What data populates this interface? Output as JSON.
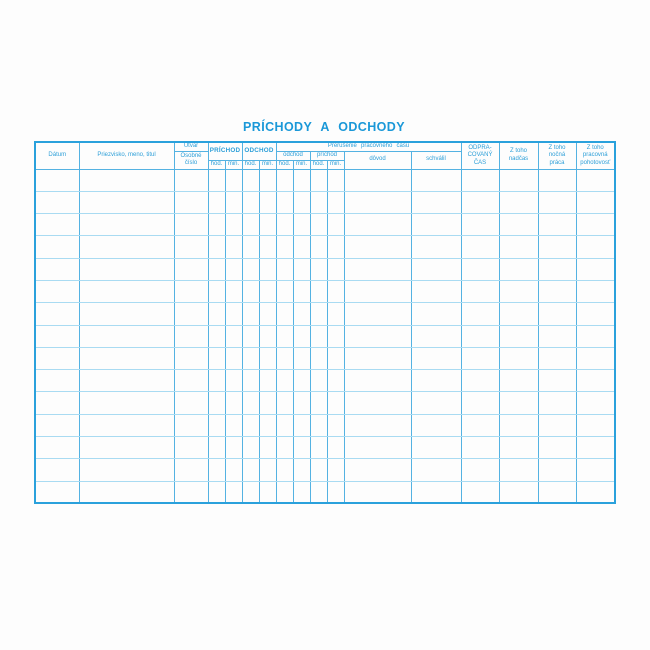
{
  "title": "PRÍCHODY A ODCHODY",
  "colors": {
    "title_color": "#1a98d8",
    "header_text": "#2d9fd8",
    "border_outer": "#2aa1dc",
    "border_vertical": "#54b2e2",
    "border_horizontal": "#a9dbf2",
    "page_background": "#fdfdfd"
  },
  "table": {
    "header": {
      "datum": "Dátum",
      "priezvisko": "Priezvisko, meno, titul",
      "utvar": "Útvar",
      "osobne_cislo": "Osobné\nčíslo",
      "prichod": "PRÍCHOD",
      "odchod": "ODCHOD",
      "prerusenie": "Prerušenie pracovného času",
      "prerusenie_odchod": "odchod",
      "prerusenie_prichod": "príchod",
      "hod": "hod.",
      "min": "min.",
      "dovod": "dôvod",
      "schvalil": "schválil",
      "odpracovany_cas": "ODPRA-\nCOVANÝ\nČAS",
      "z_toho_nadcas": "Z toho\nnadčas",
      "z_toho_nocna_praca": "Z toho\nnočná\npráca",
      "z_toho_pracovna_pohotovost": "Z toho\npracovná\npohotovosť"
    },
    "empty_row_count": 15
  }
}
